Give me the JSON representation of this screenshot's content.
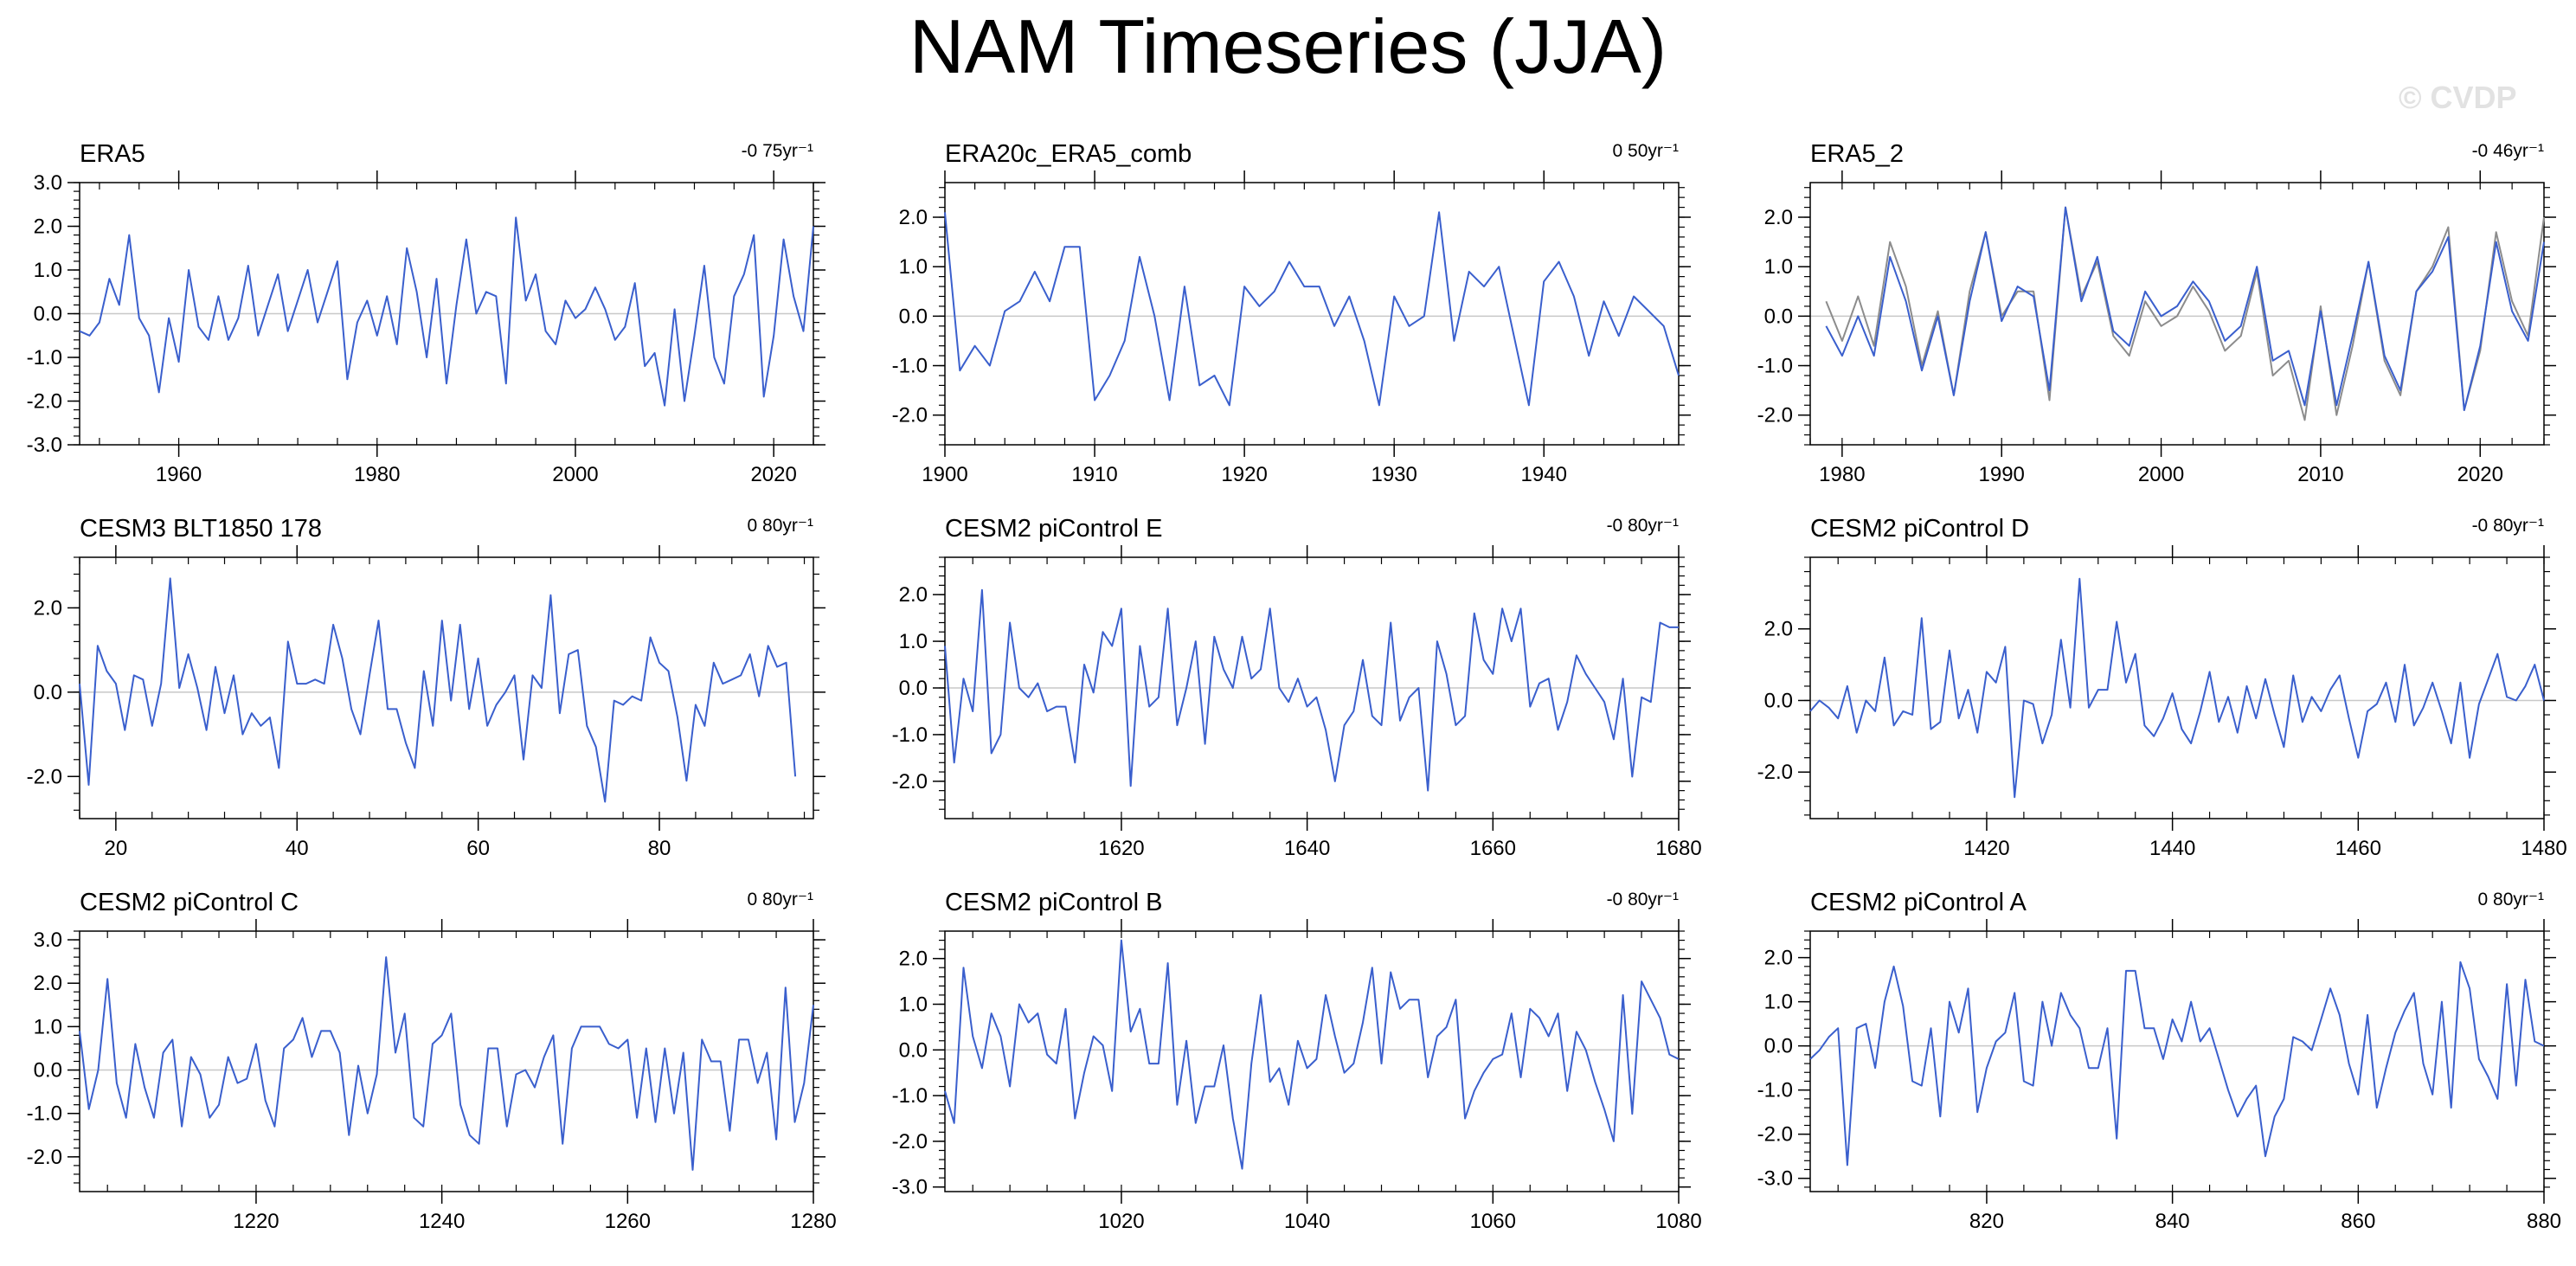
{
  "title": "NAM Timeseries (JJA)",
  "watermark": "© CVDP",
  "colors": {
    "series": "#3a5fcd",
    "second_series": "#8c8c8c",
    "zero_line": "#c8c8c8",
    "frame": "#000000"
  },
  "chart_data": [
    {
      "type": "line",
      "name": "ERA5",
      "trend": "-0 75yr⁻¹",
      "xlim": [
        1950,
        2024
      ],
      "ylim": [
        -3,
        3
      ],
      "xticks": [
        1960,
        1980,
        2000,
        2020
      ],
      "xtick_labels": [
        "1960",
        "1980",
        "2000",
        "2020"
      ],
      "yticks": [
        -3,
        -2,
        -1,
        0,
        1,
        2,
        3
      ],
      "ytick_labels": [
        "-3.0",
        "-2.0",
        "-1.0",
        "0.0",
        "1.0",
        "2.0",
        "3.0"
      ],
      "x_start": 1950,
      "x_step": 1,
      "series": [
        {
          "values": [
            -0.4,
            -0.5,
            -0.2,
            0.8,
            0.2,
            1.8,
            -0.1,
            -0.5,
            -1.8,
            -0.1,
            -1.1,
            1.0,
            -0.3,
            -0.6,
            0.4,
            -0.6,
            -0.1,
            1.1,
            -0.5,
            0.2,
            0.9,
            -0.4,
            0.3,
            1.0,
            -0.2,
            0.5,
            1.2,
            -1.5,
            -0.2,
            0.3,
            -0.5,
            0.4,
            -0.7,
            1.5,
            0.5,
            -1.0,
            0.8,
            -1.6,
            0.2,
            1.7,
            0.0,
            0.5,
            0.4,
            -1.6,
            2.2,
            0.3,
            0.9,
            -0.4,
            -0.7,
            0.3,
            -0.1,
            0.1,
            0.6,
            0.1,
            -0.6,
            -0.3,
            0.7,
            -1.2,
            -0.9,
            -2.1,
            0.1,
            -2.0,
            -0.5,
            1.1,
            -1.0,
            -1.6,
            0.4,
            0.9,
            1.8,
            -1.9,
            -0.5,
            1.7,
            0.4,
            -0.4,
            2.0
          ]
        }
      ]
    },
    {
      "type": "line",
      "name": "ERA20c_ERA5_comb",
      "trend": "0 50yr⁻¹",
      "xlim": [
        1900,
        1949
      ],
      "ylim": [
        -2.6,
        2.7
      ],
      "xticks": [
        1900,
        1910,
        1920,
        1930,
        1940
      ],
      "xtick_labels": [
        "1900",
        "1910",
        "1920",
        "1930",
        "1940"
      ],
      "yticks": [
        -2,
        -1,
        0,
        1,
        2
      ],
      "ytick_labels": [
        "-2.0",
        "-1.0",
        "0.0",
        "1.0",
        "2.0"
      ],
      "x_start": 1900,
      "x_step": 1,
      "series": [
        {
          "values": [
            2.1,
            -1.1,
            -0.6,
            -1.0,
            0.1,
            0.3,
            0.9,
            0.3,
            1.4,
            1.4,
            -1.7,
            -1.2,
            -0.5,
            1.2,
            0.0,
            -1.7,
            0.6,
            -1.4,
            -1.2,
            -1.8,
            0.6,
            0.2,
            0.5,
            1.1,
            0.6,
            0.6,
            -0.2,
            0.4,
            -0.5,
            -1.8,
            0.4,
            -0.2,
            0.0,
            2.1,
            -0.5,
            0.9,
            0.6,
            1.0,
            -0.4,
            -1.8,
            0.7,
            1.1,
            0.4,
            -0.8,
            0.3,
            -0.4,
            0.4,
            0.1,
            -0.2,
            -1.2
          ]
        }
      ]
    },
    {
      "type": "line",
      "name": "ERA5_2",
      "trend": "-0 46yr⁻¹",
      "xlim": [
        1978,
        2024
      ],
      "ylim": [
        -2.6,
        2.7
      ],
      "xticks": [
        1980,
        1990,
        2000,
        2010,
        2020
      ],
      "xtick_labels": [
        "1980",
        "1990",
        "2000",
        "2010",
        "2020"
      ],
      "yticks": [
        -2,
        -1,
        0,
        1,
        2
      ],
      "ytick_labels": [
        "-2.0",
        "-1.0",
        "0.0",
        "1.0",
        "2.0"
      ],
      "x_start": 1979,
      "x_step": 1,
      "series": [
        {
          "color": "#8c8c8c",
          "values": [
            0.3,
            -0.5,
            0.4,
            -0.6,
            1.5,
            0.6,
            -1.0,
            0.1,
            -1.6,
            0.5,
            1.7,
            0.0,
            0.5,
            0.5,
            -1.7,
            2.2,
            0.4,
            1.1,
            -0.4,
            -0.8,
            0.3,
            -0.2,
            0.0,
            0.6,
            0.1,
            -0.7,
            -0.4,
            0.9,
            -1.2,
            -0.9,
            -2.1,
            0.2,
            -2.0,
            -0.6,
            1.1,
            -0.9,
            -1.6,
            0.5,
            1.0,
            1.8,
            -1.9,
            -0.7,
            1.7,
            0.3,
            -0.4,
            2.0
          ]
        },
        {
          "color": "#3a5fcd",
          "values": [
            -0.2,
            -0.8,
            0.0,
            -0.8,
            1.2,
            0.3,
            -1.1,
            0.0,
            -1.6,
            0.3,
            1.7,
            -0.1,
            0.6,
            0.4,
            -1.5,
            2.2,
            0.3,
            1.2,
            -0.3,
            -0.6,
            0.5,
            0.0,
            0.2,
            0.7,
            0.3,
            -0.5,
            -0.2,
            1.0,
            -0.9,
            -0.7,
            -1.8,
            0.1,
            -1.8,
            -0.4,
            1.1,
            -0.8,
            -1.5,
            0.5,
            0.9,
            1.6,
            -1.9,
            -0.6,
            1.5,
            0.1,
            -0.5,
            1.5
          ]
        }
      ]
    },
    {
      "type": "line",
      "name": "CESM3 BLT1850 178",
      "trend": "0 80yr⁻¹",
      "xlim": [
        16,
        97
      ],
      "ylim": [
        -3.0,
        3.2
      ],
      "xticks": [
        20,
        40,
        60,
        80
      ],
      "xtick_labels": [
        "20",
        "40",
        "60",
        "80"
      ],
      "yticks": [
        -2,
        0,
        2
      ],
      "ytick_labels": [
        "-2.0",
        "0.0",
        "2.0"
      ],
      "x_start": 16,
      "x_step": 1,
      "series": [
        {
          "values": [
            0.2,
            -2.2,
            1.1,
            0.5,
            0.2,
            -0.9,
            0.4,
            0.3,
            -0.8,
            0.2,
            2.7,
            0.1,
            0.9,
            0.1,
            -0.9,
            0.6,
            -0.5,
            0.4,
            -1.0,
            -0.5,
            -0.8,
            -0.6,
            -1.8,
            1.2,
            0.2,
            0.2,
            0.3,
            0.2,
            1.6,
            0.8,
            -0.4,
            -1.0,
            0.4,
            1.7,
            -0.4,
            -0.4,
            -1.2,
            -1.8,
            0.5,
            -0.8,
            1.7,
            -0.2,
            1.6,
            -0.4,
            0.8,
            -0.8,
            -0.3,
            0.0,
            0.4,
            -1.6,
            0.4,
            0.1,
            2.3,
            -0.5,
            0.9,
            1.0,
            -0.8,
            -1.3,
            -2.6,
            -0.2,
            -0.3,
            -0.1,
            -0.2,
            1.3,
            0.7,
            0.5,
            -0.6,
            -2.1,
            -0.3,
            -0.8,
            0.7,
            0.2,
            0.3,
            0.4,
            0.9,
            -0.1,
            1.1,
            0.6,
            0.7,
            -2.0
          ]
        }
      ]
    },
    {
      "type": "line",
      "name": "CESM2 piControl E",
      "trend": "-0 80yr⁻¹",
      "xlim": [
        1601,
        1680
      ],
      "ylim": [
        -2.8,
        2.8
      ],
      "xticks": [
        1620,
        1640,
        1660,
        1680
      ],
      "xtick_labels": [
        "1620",
        "1640",
        "1660",
        "1680"
      ],
      "yticks": [
        -2,
        -1,
        0,
        1,
        2
      ],
      "ytick_labels": [
        "-2.0",
        "-1.0",
        "0.0",
        "1.0",
        "2.0"
      ],
      "x_start": 1601,
      "x_step": 1,
      "series": [
        {
          "values": [
            0.9,
            -1.6,
            0.2,
            -0.5,
            2.1,
            -1.4,
            -1.0,
            1.4,
            0.0,
            -0.2,
            0.1,
            -0.5,
            -0.4,
            -0.4,
            -1.6,
            0.5,
            -0.1,
            1.2,
            0.9,
            1.7,
            -2.1,
            0.9,
            -0.4,
            -0.2,
            1.7,
            -0.8,
            0.0,
            1.0,
            -1.2,
            1.1,
            0.4,
            0.0,
            1.1,
            0.2,
            0.4,
            1.7,
            0.0,
            -0.3,
            0.2,
            -0.4,
            -0.2,
            -0.9,
            -2.0,
            -0.8,
            -0.5,
            0.6,
            -0.6,
            -0.8,
            1.4,
            -0.7,
            -0.2,
            0.0,
            -2.2,
            1.0,
            0.3,
            -0.8,
            -0.6,
            1.6,
            0.6,
            0.3,
            1.7,
            1.0,
            1.7,
            -0.4,
            0.1,
            0.2,
            -0.9,
            -0.3,
            0.7,
            0.3,
            0.0,
            -0.3,
            -1.1,
            0.2,
            -1.9,
            -0.2,
            -0.3,
            1.4,
            1.3,
            1.3
          ]
        }
      ]
    },
    {
      "type": "line",
      "name": "CESM2 piControl D",
      "trend": "-0 80yr⁻¹",
      "xlim": [
        1401,
        1480
      ],
      "ylim": [
        -3.3,
        4.0
      ],
      "xticks": [
        1420,
        1440,
        1460,
        1480
      ],
      "xtick_labels": [
        "1420",
        "1440",
        "1460",
        "1480"
      ],
      "yticks": [
        -2,
        0,
        2
      ],
      "ytick_labels": [
        "-2.0",
        "0.0",
        "2.0"
      ],
      "x_start": 1401,
      "x_step": 1,
      "series": [
        {
          "values": [
            -0.3,
            0.0,
            -0.2,
            -0.5,
            0.4,
            -0.9,
            0.0,
            -0.3,
            1.2,
            -0.7,
            -0.3,
            -0.4,
            2.3,
            -0.8,
            -0.6,
            1.4,
            -0.5,
            0.3,
            -0.9,
            0.8,
            0.5,
            1.5,
            -2.7,
            0.0,
            -0.1,
            -1.2,
            -0.4,
            1.7,
            -0.2,
            3.4,
            -0.2,
            0.3,
            0.3,
            2.2,
            0.5,
            1.3,
            -0.7,
            -1.0,
            -0.5,
            0.2,
            -0.8,
            -1.2,
            -0.3,
            0.8,
            -0.6,
            0.1,
            -0.9,
            0.4,
            -0.5,
            0.6,
            -0.4,
            -1.3,
            0.7,
            -0.6,
            0.1,
            -0.3,
            0.3,
            0.7,
            -0.5,
            -1.6,
            -0.3,
            -0.1,
            0.5,
            -0.6,
            1.0,
            -0.7,
            -0.2,
            0.5,
            -0.3,
            -1.2,
            0.5,
            -1.6,
            -0.1,
            0.6,
            1.3,
            0.1,
            0.0,
            0.4,
            1.0,
            0.0
          ]
        }
      ]
    },
    {
      "type": "line",
      "name": "CESM2 piControl C",
      "trend": "0 80yr⁻¹",
      "xlim": [
        1201,
        1280
      ],
      "ylim": [
        -2.8,
        3.2
      ],
      "xticks": [
        1220,
        1240,
        1260,
        1280
      ],
      "xtick_labels": [
        "1220",
        "1240",
        "1260",
        "1280"
      ],
      "yticks": [
        -2,
        -1,
        0,
        1,
        2,
        3
      ],
      "ytick_labels": [
        "-2.0",
        "-1.0",
        "0.0",
        "1.0",
        "2.0",
        "3.0"
      ],
      "x_start": 1201,
      "x_step": 1,
      "series": [
        {
          "values": [
            0.9,
            -0.9,
            0.0,
            2.1,
            -0.3,
            -1.1,
            0.6,
            -0.4,
            -1.1,
            0.4,
            0.7,
            -1.3,
            0.3,
            -0.1,
            -1.1,
            -0.8,
            0.3,
            -0.3,
            -0.2,
            0.6,
            -0.7,
            -1.3,
            0.5,
            0.7,
            1.2,
            0.3,
            0.9,
            0.9,
            0.4,
            -1.5,
            0.1,
            -1.0,
            -0.1,
            2.6,
            0.4,
            1.3,
            -1.1,
            -1.3,
            0.6,
            0.8,
            1.3,
            -0.8,
            -1.5,
            -1.7,
            0.5,
            0.5,
            -1.3,
            -0.1,
            0.0,
            -0.4,
            0.3,
            0.8,
            -1.7,
            0.5,
            1.0,
            1.0,
            1.0,
            0.6,
            0.5,
            0.7,
            -1.1,
            0.5,
            -1.2,
            0.5,
            -1.0,
            0.4,
            -2.3,
            0.7,
            0.2,
            0.2,
            -1.4,
            0.7,
            0.7,
            -0.3,
            0.4,
            -1.6,
            1.9,
            -1.2,
            -0.3,
            1.5
          ]
        }
      ]
    },
    {
      "type": "line",
      "name": "CESM2 piControl B",
      "trend": "-0 80yr⁻¹",
      "xlim": [
        1001,
        1080
      ],
      "ylim": [
        -3.1,
        2.6
      ],
      "xticks": [
        1020,
        1040,
        1060,
        1080
      ],
      "xtick_labels": [
        "1020",
        "1040",
        "1060",
        "1080"
      ],
      "yticks": [
        -3,
        -2,
        -1,
        0,
        1,
        2
      ],
      "ytick_labels": [
        "-3.0",
        "-2.0",
        "-1.0",
        "0.0",
        "1.0",
        "2.0"
      ],
      "x_start": 1001,
      "x_step": 1,
      "series": [
        {
          "values": [
            -0.9,
            -1.6,
            1.8,
            0.3,
            -0.4,
            0.8,
            0.3,
            -0.8,
            1.0,
            0.6,
            0.8,
            -0.1,
            -0.3,
            0.9,
            -1.5,
            -0.5,
            0.3,
            0.1,
            -0.9,
            2.4,
            0.4,
            0.9,
            -0.3,
            -0.3,
            1.9,
            -1.2,
            0.2,
            -1.6,
            -0.8,
            -0.8,
            0.1,
            -1.5,
            -2.6,
            -0.3,
            1.2,
            -0.7,
            -0.4,
            -1.2,
            0.2,
            -0.4,
            -0.2,
            1.2,
            0.3,
            -0.5,
            -0.3,
            0.6,
            1.8,
            -0.3,
            1.7,
            0.9,
            1.1,
            1.1,
            -0.6,
            0.3,
            0.5,
            1.1,
            -1.5,
            -0.9,
            -0.5,
            -0.2,
            -0.1,
            0.8,
            -0.6,
            0.9,
            0.7,
            0.3,
            0.8,
            -0.9,
            0.4,
            0.0,
            -0.7,
            -1.3,
            -2.0,
            1.2,
            -1.4,
            1.5,
            1.1,
            0.7,
            -0.1,
            -0.2
          ]
        }
      ]
    },
    {
      "type": "line",
      "name": "CESM2 piControl A",
      "trend": "0 80yr⁻¹",
      "xlim": [
        801,
        880
      ],
      "ylim": [
        -3.3,
        2.6
      ],
      "xticks": [
        820,
        840,
        860,
        880
      ],
      "xtick_labels": [
        "820",
        "840",
        "860",
        "880"
      ],
      "yticks": [
        -3,
        -2,
        -1,
        0,
        1,
        2
      ],
      "ytick_labels": [
        "-3.0",
        "-2.0",
        "-1.0",
        "0.0",
        "1.0",
        "2.0"
      ],
      "x_start": 801,
      "x_step": 1,
      "series": [
        {
          "values": [
            -0.3,
            -0.1,
            0.2,
            0.4,
            -2.7,
            0.4,
            0.5,
            -0.5,
            1.0,
            1.8,
            0.9,
            -0.8,
            -0.9,
            0.4,
            -1.6,
            1.0,
            0.3,
            1.3,
            -1.5,
            -0.5,
            0.1,
            0.3,
            1.2,
            -0.8,
            -0.9,
            1.0,
            0.0,
            1.2,
            0.7,
            0.4,
            -0.5,
            -0.5,
            0.4,
            -2.1,
            1.7,
            1.7,
            0.4,
            0.4,
            -0.3,
            0.6,
            0.1,
            1.0,
            0.1,
            0.4,
            -0.3,
            -1.0,
            -1.6,
            -1.2,
            -0.9,
            -2.5,
            -1.6,
            -1.2,
            0.2,
            0.1,
            -0.1,
            0.6,
            1.3,
            0.7,
            -0.4,
            -1.1,
            0.7,
            -1.4,
            -0.5,
            0.3,
            0.8,
            1.2,
            -0.4,
            -1.1,
            1.0,
            -1.4,
            1.9,
            1.3,
            -0.3,
            -0.7,
            -1.2,
            1.4,
            -0.9,
            1.5,
            0.1,
            0.0
          ]
        }
      ]
    }
  ]
}
